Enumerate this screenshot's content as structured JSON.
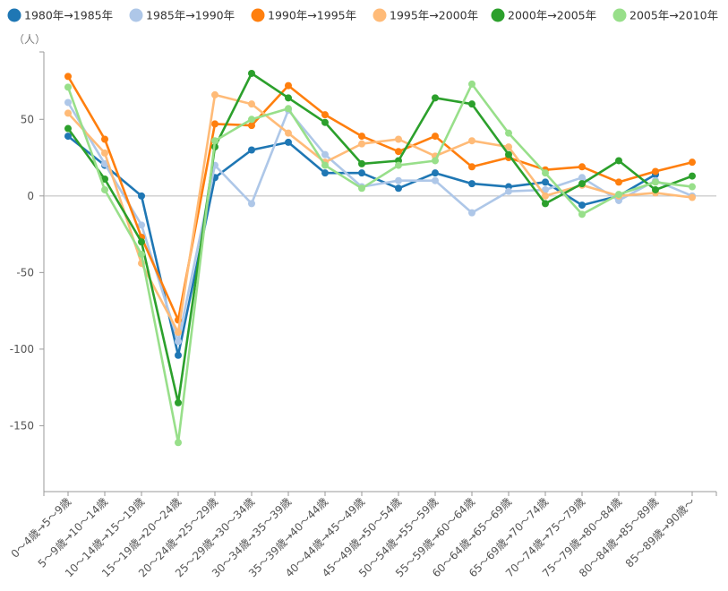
{
  "chart_data": {
    "type": "line",
    "unit_label": "（人）",
    "categories": [
      "0～4歳→5～9歳",
      "5～9歳→10～14歳",
      "10～14歳→15～19歳",
      "15～19歳→20～24歳",
      "20～24歳→25～29歳",
      "25～29歳→30～34歳",
      "30～34歳→35～39歳",
      "35～39歳→40～44歳",
      "40～44歳→45～49歳",
      "45～49歳→50～54歳",
      "50～54歳→55～59歳",
      "55～59歳→60～64歳",
      "60～64歳→65～69歳",
      "65～69歳→70～74歳",
      "70～74歳→75～79歳",
      "75～79歳→80～84歳",
      "80～84歳→85～89歳",
      "85～89歳→90歳～"
    ],
    "y_ticks": [
      -150,
      -100,
      -50,
      0,
      50
    ],
    "ylim": [
      -193,
      94
    ],
    "zero_line": true,
    "legend_position": "top",
    "series": [
      {
        "name": "1980年→1985年",
        "color": "#1f77b4",
        "values": [
          39,
          20,
          0,
          -104,
          12,
          30,
          35,
          15,
          15,
          5,
          15,
          8,
          6,
          9,
          -6,
          0,
          14,
          null
        ]
      },
      {
        "name": "1985年→1990年",
        "color": "#aec7e8",
        "values": [
          61,
          21,
          -19,
          -95,
          20,
          -5,
          56,
          27,
          6,
          10,
          10,
          -11,
          3,
          4,
          12,
          -3,
          10,
          0
        ]
      },
      {
        "name": "1990年→1995年",
        "color": "#ff7f0e",
        "values": [
          78,
          37,
          -27,
          -81,
          47,
          46,
          72,
          53,
          39,
          29,
          39,
          19,
          25,
          17,
          19,
          9,
          16,
          22
        ]
      },
      {
        "name": "1995年→2000年",
        "color": "#ffbb78",
        "values": [
          54,
          28,
          -44,
          -89,
          66,
          60,
          41,
          22,
          34,
          37,
          26,
          36,
          32,
          0,
          7,
          0,
          2,
          -1
        ]
      },
      {
        "name": "2000年→2005年",
        "color": "#2ca02c",
        "values": [
          44,
          11,
          -30,
          -135,
          32,
          80,
          64,
          48,
          21,
          23,
          64,
          60,
          27,
          -5,
          8,
          23,
          4,
          13
        ]
      },
      {
        "name": "2005年→2010年",
        "color": "#98df8a",
        "values": [
          71,
          4,
          -38,
          -161,
          36,
          50,
          57,
          20,
          5,
          20,
          23,
          73,
          41,
          15,
          -12,
          1,
          9,
          6
        ]
      }
    ]
  }
}
